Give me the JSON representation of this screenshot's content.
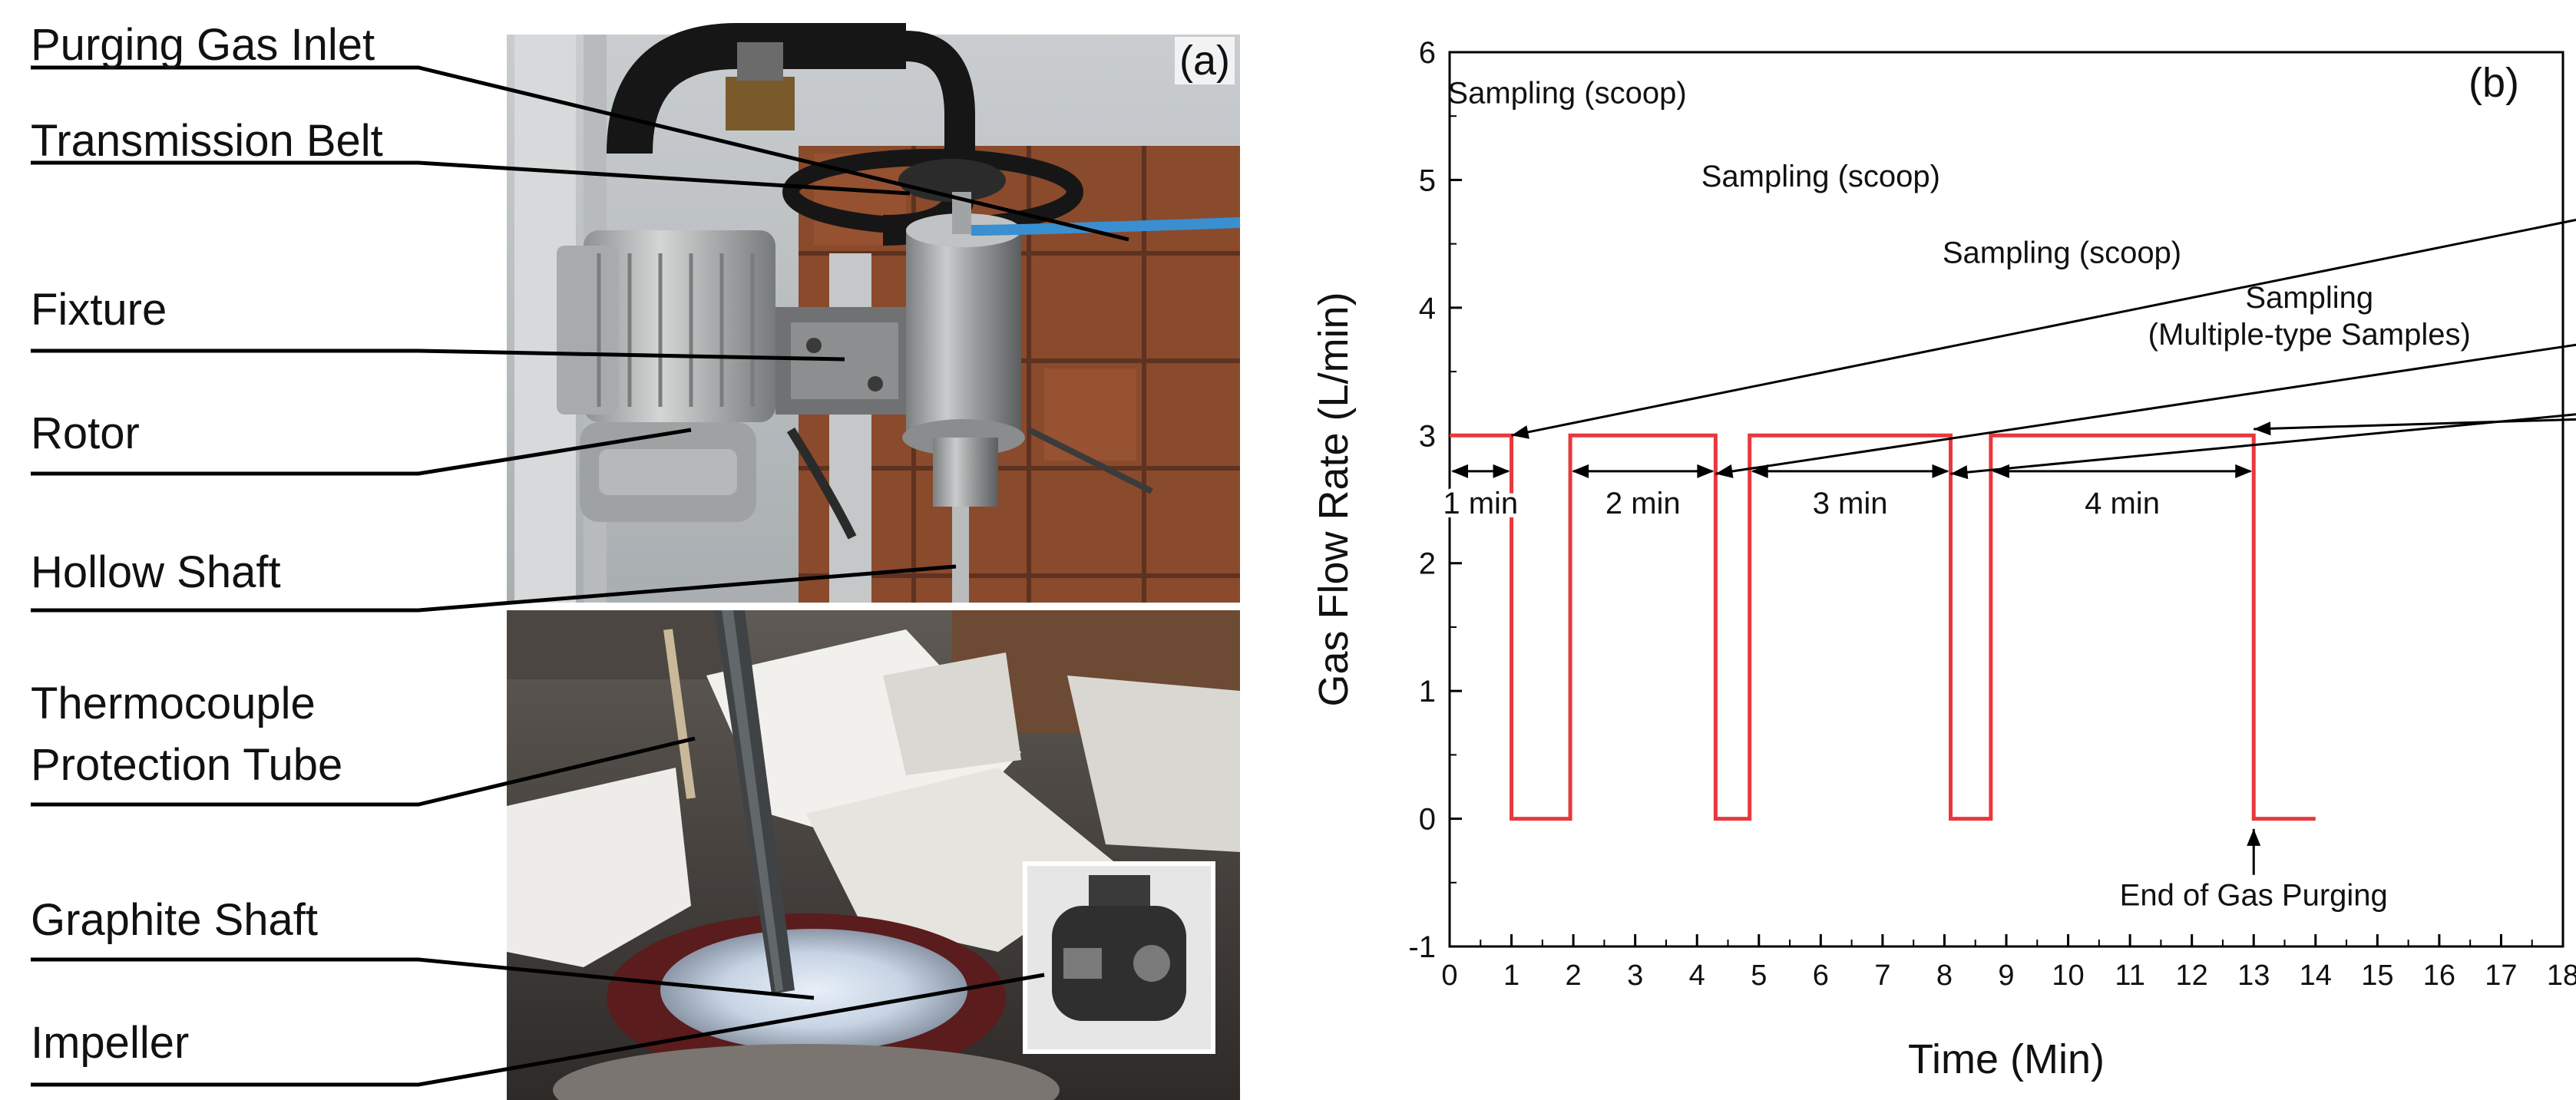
{
  "panel_a": {
    "tag": "(a)",
    "labels": [
      "Purging Gas Inlet",
      "Transmission Belt",
      "Fixture",
      "Rotor",
      "Hollow Shaft",
      "Thermocouple",
      "Protection Tube",
      "Graphite Shaft",
      "Impeller"
    ]
  },
  "chart_data": {
    "type": "line",
    "panel_tag": "(b)",
    "xlabel": "Time (Min)",
    "ylabel": "Gas Flow Rate (L/min)",
    "xlim": [
      0,
      18
    ],
    "ylim": [
      -1,
      6
    ],
    "x_ticks": [
      0,
      1,
      2,
      3,
      4,
      5,
      6,
      7,
      8,
      9,
      10,
      11,
      12,
      13,
      14,
      15,
      16,
      17,
      18
    ],
    "y_ticks": [
      -1,
      0,
      1,
      2,
      3,
      4,
      5,
      6
    ],
    "grid": false,
    "line_color": "#e8383d",
    "series": [
      {
        "x": [
          0,
          1.0,
          1.0,
          1.95,
          1.95,
          4.3,
          4.3,
          4.85,
          4.85,
          8.1,
          8.1,
          8.75,
          8.75,
          13.0,
          13.0,
          14.0
        ],
        "y": [
          3,
          3,
          0,
          0,
          3,
          3,
          0,
          0,
          3,
          3,
          0,
          0,
          3,
          3,
          0,
          0
        ]
      }
    ],
    "intervals": [
      {
        "label": "1 min",
        "x0": 0,
        "x1": 1.0,
        "y": 2.72
      },
      {
        "label": "2 min",
        "x0": 1.95,
        "x1": 4.3,
        "y": 2.72
      },
      {
        "label": "3 min",
        "x0": 4.85,
        "x1": 8.1,
        "y": 2.72
      },
      {
        "label": "4 min",
        "x0": 8.75,
        "x1": 13.0,
        "y": 2.72
      }
    ],
    "annotations": [
      {
        "lines": [
          "Sampling (scoop)"
        ],
        "text_x": 1.9,
        "text_y": 5.6,
        "tip_x": 1.0,
        "tip_y": 3.0
      },
      {
        "lines": [
          "Sampling (scoop)"
        ],
        "text_x": 6.0,
        "text_y": 4.95,
        "tip_x": 4.3,
        "tip_y": 2.7
      },
      {
        "lines": [
          "Sampling (scoop)"
        ],
        "text_x": 9.9,
        "text_y": 4.35,
        "tip_x": 8.1,
        "tip_y": 2.7
      },
      {
        "lines": [
          "Sampling",
          "(Multiple-type Samples)"
        ],
        "text_x": 13.9,
        "text_y": 4.0,
        "tip_x": 13.0,
        "tip_y": 3.05
      },
      {
        "lines": [
          "End of Gas Purging"
        ],
        "text_x": 13.0,
        "text_y": -0.68,
        "tip_x": 13.0,
        "tip_y": -0.08
      }
    ]
  }
}
